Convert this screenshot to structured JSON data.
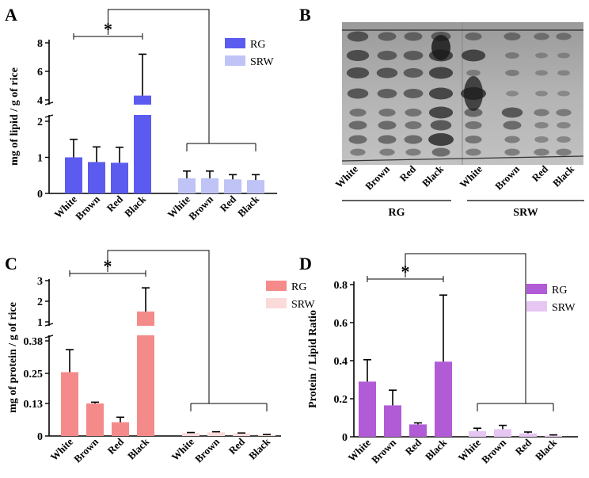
{
  "panels": {
    "A": {
      "letter": "A",
      "chart_data": {
        "type": "bar",
        "title": "",
        "xlabel": "",
        "ylabel": "mg of lipid / g of rice",
        "axis_break": {
          "lower_range": [
            0,
            2
          ],
          "upper_range": [
            4,
            8
          ]
        },
        "yticks_lower": [
          "0",
          "1",
          "2"
        ],
        "yticks_upper": [
          "4",
          "6",
          "8"
        ],
        "categories": [
          "White",
          "Brown",
          "Red",
          "Black"
        ],
        "series": [
          {
            "name": "RG",
            "color": "#5b5bf0",
            "values": [
              1.0,
              0.87,
              0.85,
              4.3
            ],
            "errors": [
              0.5,
              0.42,
              0.43,
              2.9
            ]
          },
          {
            "name": "SRW",
            "color": "#bfc3f5",
            "values": [
              0.42,
              0.42,
              0.39,
              0.37
            ],
            "errors": [
              0.2,
              0.2,
              0.13,
              0.15
            ]
          }
        ],
        "significance": {
          "label": "*",
          "between": [
            "White",
            "Black"
          ],
          "series": "RG"
        },
        "legend": [
          "RG",
          "SRW"
        ]
      }
    },
    "B": {
      "letter": "B",
      "lanes": [
        "White",
        "Brown",
        "Red",
        "Black",
        "White",
        "Brown",
        "Red",
        "Black"
      ],
      "groups": [
        "RG",
        "SRW"
      ]
    },
    "C": {
      "letter": "C",
      "chart_data": {
        "type": "bar",
        "title": "",
        "xlabel": "",
        "ylabel": "mg of protein / g of rice",
        "axis_break": {
          "lower_range": [
            0,
            0.38
          ],
          "upper_range": [
            1,
            3
          ]
        },
        "yticks_lower": [
          "0",
          "0.13",
          "0.25",
          "0.38"
        ],
        "yticks_upper": [
          "1",
          "2",
          "3"
        ],
        "categories": [
          "White",
          "Brown",
          "Red",
          "Black"
        ],
        "series": [
          {
            "name": "RG",
            "color": "#f58a8a",
            "values": [
              0.255,
              0.13,
              0.055,
              1.5
            ],
            "errors": [
              0.09,
              0.005,
              0.02,
              1.15
            ]
          },
          {
            "name": "SRW",
            "color": "#fbdada",
            "values": [
              0.012,
              0.015,
              0.01,
              0.004
            ],
            "errors": [
              0.002,
              0.002,
              0.002,
              0.002
            ]
          }
        ],
        "significance": {
          "label": "*",
          "between": [
            "White",
            "Black"
          ],
          "series": "RG"
        },
        "legend": [
          "RG",
          "SRW"
        ]
      }
    },
    "D": {
      "letter": "D",
      "chart_data": {
        "type": "bar",
        "title": "",
        "xlabel": "",
        "ylabel": "Protein / Lipid Ratio",
        "ylim": [
          0,
          0.8
        ],
        "yticks": [
          "0",
          "0.2",
          "0.4",
          "0.6",
          "0.8"
        ],
        "categories": [
          "White",
          "Brown",
          "Red",
          "Black"
        ],
        "series": [
          {
            "name": "RG",
            "color": "#b25bd6",
            "values": [
              0.29,
              0.165,
              0.065,
              0.395
            ],
            "errors": [
              0.115,
              0.08,
              0.008,
              0.35
            ]
          },
          {
            "name": "SRW",
            "color": "#e6c6f2",
            "values": [
              0.03,
              0.04,
              0.018,
              0.006
            ],
            "errors": [
              0.015,
              0.02,
              0.007,
              0.004
            ]
          }
        ],
        "significance": {
          "label": "*",
          "between": [
            "White",
            "Black"
          ],
          "series": "RG"
        },
        "legend": [
          "RG",
          "SRW"
        ]
      }
    }
  }
}
